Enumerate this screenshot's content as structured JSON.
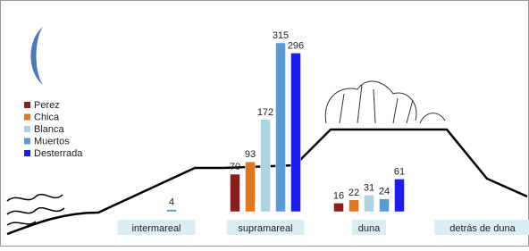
{
  "chart_data": {
    "type": "bar",
    "categories": [
      "intermareal",
      "supramareal",
      "duna",
      "detrás de duna"
    ],
    "series": [
      {
        "name": "Perez",
        "color": "#8b1c1c",
        "values": [
          null,
          70,
          16,
          null
        ]
      },
      {
        "name": "Chica",
        "color": "#e2761f",
        "values": [
          null,
          93,
          22,
          null
        ]
      },
      {
        "name": "Blanca",
        "color": "#a9d6e3",
        "values": [
          null,
          172,
          31,
          null
        ]
      },
      {
        "name": "Muertos",
        "color": "#5b9bd5",
        "values": [
          4,
          315,
          24,
          null
        ]
      },
      {
        "name": "Desterrada",
        "color": "#1c1cf0",
        "values": [
          null,
          296,
          61,
          null
        ]
      }
    ],
    "legend": "left"
  }
}
